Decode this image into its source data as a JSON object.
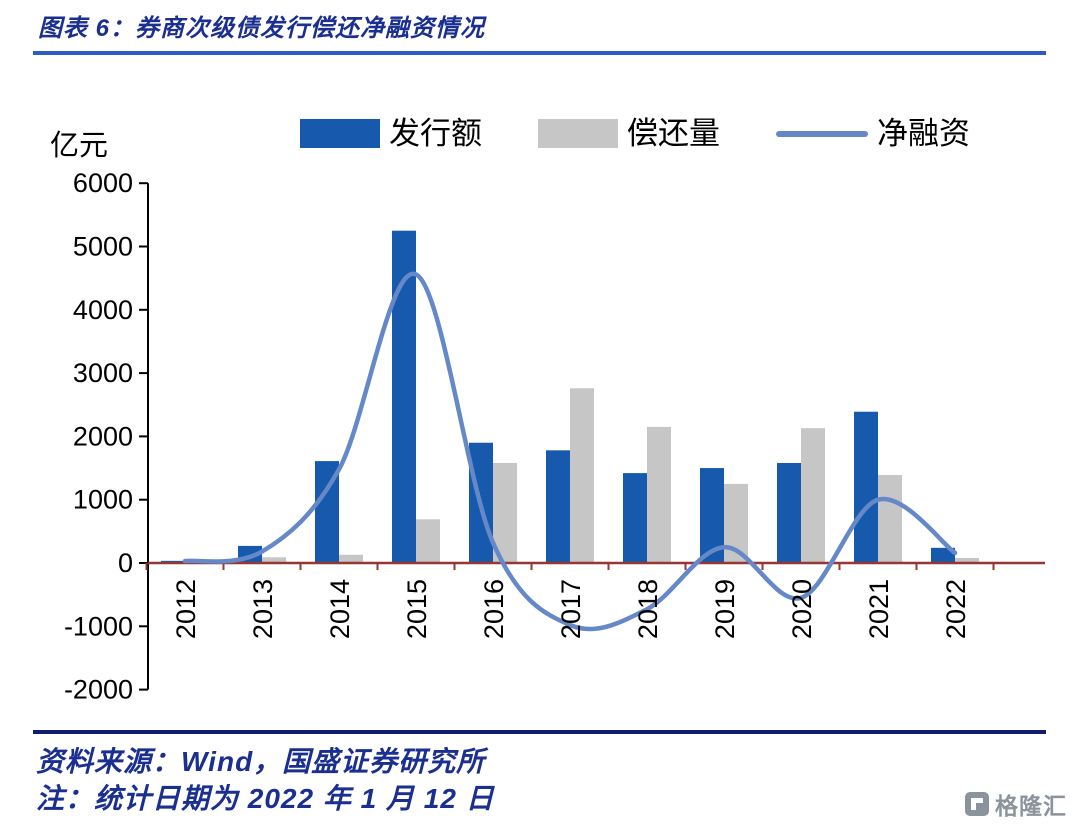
{
  "header": {
    "title": "图表 6：券商次级债发行偿还净融资情况"
  },
  "footer": {
    "source": "资料来源：Wind，国盛证券研究所",
    "note": "注：统计日期为 2022 年 1 月 12 日"
  },
  "watermark": {
    "brand": "格隆汇"
  },
  "colors": {
    "title_text": "#1A2F8F",
    "title_rule": "#2E5CC7",
    "footer_rule": "#101C70",
    "issuance_bar": "#1759AC",
    "repayment_bar": "#C6C6C6",
    "net_line": "#6589C8",
    "zero_axis": "#953735"
  },
  "chart_data": {
    "type": "combo",
    "title": "券商次级债发行偿还净融资情况",
    "unit_label": "亿元",
    "categories": [
      "2012",
      "2013",
      "2014",
      "2015",
      "2016",
      "2017",
      "2018",
      "2019",
      "2020",
      "2021",
      "2022"
    ],
    "series": [
      {
        "name": "发行额",
        "type": "bar",
        "color": "#1759AC",
        "values": [
          34,
          270,
          1610,
          5250,
          1900,
          1780,
          1420,
          1500,
          1580,
          2390,
          240
        ]
      },
      {
        "name": "偿还量",
        "type": "bar",
        "color": "#C6C6C6",
        "values": [
          5,
          90,
          130,
          690,
          1580,
          2760,
          2150,
          1250,
          2130,
          1390,
          80
        ]
      },
      {
        "name": "净融资",
        "type": "line",
        "color": "#6589C8",
        "values": [
          30,
          180,
          1480,
          4560,
          320,
          -980,
          -730,
          250,
          -550,
          1000,
          160
        ]
      }
    ],
    "y_ticks": [
      6000,
      5000,
      4000,
      3000,
      2000,
      1000,
      0,
      -1000,
      -2000
    ],
    "ylim": [
      -2000,
      6000
    ],
    "axis_color": "#953735",
    "legend_position": "top",
    "grid": false
  }
}
